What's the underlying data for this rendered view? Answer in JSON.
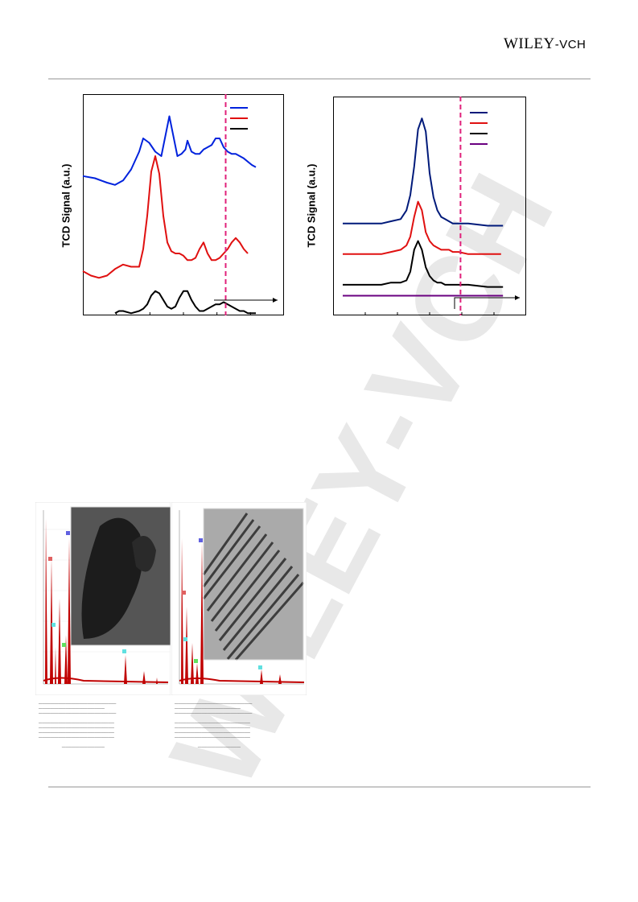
{
  "header": {
    "publisher_main": "WILEY",
    "publisher_suffix": "-VCH"
  },
  "watermark": {
    "text": "WILEY-VCH",
    "color": "#e6e6e6"
  },
  "colors": {
    "blue": "#0022dd",
    "red": "#e01010",
    "black": "#000000",
    "navy": "#001a7a",
    "purple": "#6a0080",
    "magenta": "#e0207a"
  },
  "chart_data": [
    {
      "type": "line",
      "ylabel": "TCD Signal (a.u.)",
      "xlim": [
        0,
        100
      ],
      "ylim": [
        0,
        100
      ],
      "reference_line_x": 71,
      "series": [
        {
          "color": "blue",
          "x": [
            0,
            6,
            12,
            16,
            20,
            24,
            28,
            30,
            33,
            36,
            39,
            41,
            43,
            45,
            47,
            49,
            51,
            52,
            54,
            56,
            58,
            60,
            62,
            64,
            66,
            68,
            70,
            72,
            74,
            76,
            80,
            84,
            86
          ],
          "y": [
            63,
            62,
            60,
            59,
            61,
            66,
            74,
            80,
            78,
            74,
            72,
            81,
            90,
            81,
            72,
            73,
            75,
            79,
            74,
            73,
            73,
            75,
            76,
            77,
            80,
            80,
            76,
            74,
            73,
            73,
            71,
            68,
            67
          ]
        },
        {
          "color": "red",
          "x": [
            0,
            4,
            8,
            12,
            16,
            20,
            24,
            28,
            30,
            32,
            34,
            36,
            38,
            40,
            42,
            44,
            46,
            48,
            50,
            52,
            54,
            56,
            58,
            60,
            62,
            64,
            66,
            68,
            70,
            72,
            74,
            76,
            78,
            80,
            82
          ],
          "y": [
            20,
            18,
            17,
            18,
            21,
            23,
            22,
            22,
            30,
            45,
            65,
            72,
            64,
            45,
            33,
            29,
            28,
            28,
            27,
            25,
            25,
            26,
            30,
            33,
            28,
            25,
            25,
            26,
            28,
            30,
            33,
            35,
            33,
            30,
            28
          ]
        },
        {
          "color": "black",
          "x": [
            16,
            18,
            20,
            24,
            28,
            30,
            32,
            34,
            36,
            38,
            40,
            42,
            44,
            46,
            48,
            50,
            52,
            54,
            56,
            58,
            60,
            62,
            64,
            66,
            68,
            70,
            72,
            74,
            76,
            78,
            80,
            82,
            84,
            86
          ],
          "y": [
            1,
            2,
            2,
            1,
            2,
            3,
            5,
            9,
            11,
            10,
            7,
            4,
            3,
            4,
            8,
            11,
            11,
            7,
            4,
            2,
            2,
            3,
            4,
            5,
            5,
            6,
            5,
            4,
            3,
            2,
            2,
            1,
            1,
            1
          ]
        }
      ]
    },
    {
      "type": "line",
      "ylabel": "TCD Signal (a.u.)",
      "xlim": [
        0,
        100
      ],
      "ylim": [
        0,
        100
      ],
      "reference_line_x": 66,
      "series": [
        {
          "color": "navy",
          "x": [
            5,
            15,
            25,
            30,
            35,
            38,
            40,
            42,
            44,
            46,
            48,
            50,
            52,
            54,
            56,
            58,
            60,
            62,
            65,
            70,
            80,
            88
          ],
          "y": [
            42,
            42,
            42,
            43,
            44,
            48,
            55,
            68,
            85,
            90,
            84,
            65,
            54,
            48,
            45,
            44,
            43,
            42,
            42,
            42,
            41,
            41
          ]
        },
        {
          "color": "red",
          "x": [
            5,
            15,
            25,
            30,
            35,
            38,
            40,
            42,
            44,
            46,
            48,
            50,
            52,
            54,
            56,
            58,
            60,
            62,
            65,
            70,
            80,
            87
          ],
          "y": [
            28,
            28,
            28,
            29,
            30,
            32,
            36,
            45,
            52,
            48,
            38,
            34,
            32,
            31,
            30,
            30,
            30,
            29,
            29,
            28,
            28,
            28
          ]
        },
        {
          "color": "black",
          "x": [
            5,
            15,
            25,
            30,
            35,
            38,
            40,
            42,
            44,
            46,
            48,
            50,
            52,
            54,
            56,
            58,
            60,
            62,
            65,
            70,
            80,
            88
          ],
          "y": [
            14,
            14,
            14,
            15,
            15,
            16,
            20,
            30,
            34,
            30,
            22,
            18,
            16,
            15,
            15,
            14,
            14,
            14,
            14,
            14,
            13,
            13
          ]
        },
        {
          "color": "purple",
          "x": [
            5,
            30,
            60,
            88
          ],
          "y": [
            9,
            9,
            9,
            9
          ]
        }
      ]
    }
  ]
}
